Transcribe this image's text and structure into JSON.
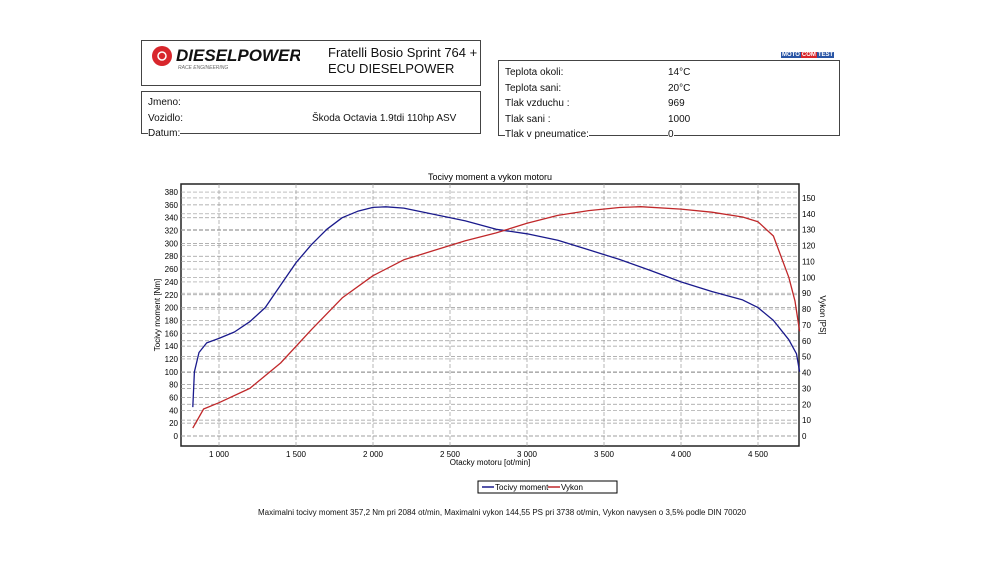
{
  "header": {
    "logo_text": "DIESELPOWER",
    "logo_sub": "RACE ENGINEERING",
    "title_line1": "Fratelli Bosio Sprint 764 +",
    "title_line2": "ECU DIESELPOWER",
    "badge": [
      "MOTO",
      "COM",
      "TEST"
    ]
  },
  "info": {
    "jmeno_label": "Jmeno:",
    "vozidlo_label": "Vozidlo:",
    "vozidlo_value": "Škoda Octavia 1.9tdi 110hp ASV",
    "datum_label": "Datum:"
  },
  "conditions": [
    {
      "label": "Teplota okoli:",
      "value": "14°C"
    },
    {
      "label": "Teplota sani:",
      "value": "20°C"
    },
    {
      "label": "Tlak vzduchu :",
      "value": "969"
    },
    {
      "label": "Tlak sani :",
      "value": "1000"
    },
    {
      "label": "Tlak v pneumatice:",
      "value": "0"
    }
  ],
  "chart_data": {
    "type": "line",
    "title": "Tocivy moment a vykon motoru",
    "xlabel": "Otacky motoru [ot/min]",
    "ylabel": "Tocivy moment [Nm]",
    "y2label": "Vykon [PS]",
    "xlim": [
      753,
      4766
    ],
    "ylim": [
      0,
      390
    ],
    "y2lim": [
      0,
      157
    ],
    "xticks": [
      1000,
      1500,
      2000,
      2500,
      3000,
      3500,
      4000,
      4500
    ],
    "xtick_labels": [
      "1 000",
      "1 500",
      "2 000",
      "2 500",
      "3 000",
      "3 500",
      "4 000",
      "4 500"
    ],
    "yticks": [
      0,
      20,
      40,
      60,
      80,
      100,
      120,
      140,
      160,
      180,
      200,
      220,
      240,
      260,
      280,
      300,
      320,
      340,
      360,
      380
    ],
    "y2ticks": [
      0,
      10,
      20,
      30,
      40,
      50,
      60,
      70,
      80,
      90,
      100,
      110,
      120,
      130,
      140,
      150
    ],
    "grid": true,
    "legend_position": "bottom-center",
    "series": [
      {
        "name": "Tocivy moment",
        "axis": "left",
        "color": "#1a1a8c",
        "x": [
          830,
          840,
          870,
          920,
          1000,
          1100,
          1200,
          1300,
          1400,
          1500,
          1600,
          1700,
          1800,
          1900,
          2000,
          2084,
          2200,
          2400,
          2600,
          2800,
          3000,
          3200,
          3400,
          3600,
          3800,
          4000,
          4200,
          4400,
          4500,
          4600,
          4700,
          4750,
          4770
        ],
        "y": [
          45,
          100,
          130,
          145,
          152,
          162,
          178,
          200,
          235,
          270,
          298,
          322,
          340,
          350,
          356,
          357,
          355,
          345,
          335,
          322,
          315,
          305,
          290,
          275,
          258,
          240,
          225,
          212,
          200,
          180,
          150,
          128,
          100
        ]
      },
      {
        "name": "Vykon",
        "axis": "right",
        "color": "#c0282a",
        "x": [
          830,
          900,
          1000,
          1200,
          1400,
          1600,
          1800,
          2000,
          2200,
          2400,
          2600,
          2800,
          3000,
          3200,
          3400,
          3600,
          3738,
          4000,
          4200,
          4400,
          4500,
          4600,
          4700,
          4740,
          4770
        ],
        "y": [
          5,
          17,
          21,
          30,
          46,
          67,
          87,
          101,
          111,
          117,
          123,
          128,
          134,
          139,
          142,
          144,
          144.5,
          143,
          141,
          138,
          135,
          126,
          100,
          85,
          66
        ]
      }
    ]
  },
  "footer": "Maximalni tocivy moment 357,2 Nm pri 2084 ot/min,  Maximalni vykon 144,55 PS pri 3738 ot/min,  Vykon navysen o 3,5% podle DIN 70020"
}
